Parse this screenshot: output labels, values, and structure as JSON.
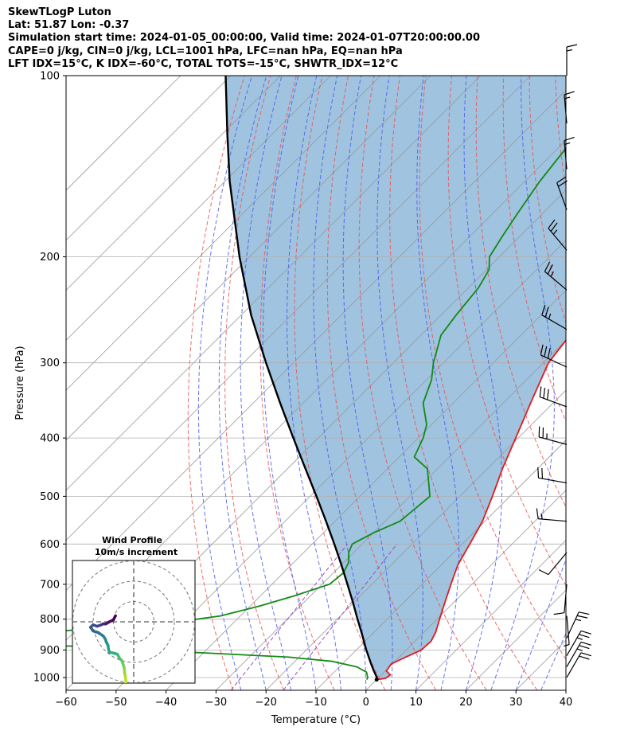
{
  "header": {
    "title": "SkewTLogP Luton",
    "latlon": "Lat: 51.87   Lon: -0.37",
    "times": "Simulation start time: 2024-01-05_00:00:00, Valid time: 2024-01-07T20:00:00.00",
    "params": "CAPE=0 j/kg, CIN=0 j/kg, LCL=1001 hPa, LFC=nan hPa, EQ=nan hPa",
    "indices": "LFT IDX=15°C, K IDX=-60°C, TOTAL TOTS=-15°C, SHWTR_IDX=12°C"
  },
  "colors": {
    "temperature": "#e31a1c",
    "dewpoint": "#138a13",
    "parcel": "#000000",
    "cape_fill": "#8fb9d9",
    "dry_adiabat": "#f05050",
    "moist_adiabat": "#4a5cf0",
    "mixing_ratio": "#9a4fc0",
    "isotherm": "#999999",
    "grid": "#b0b0b0"
  },
  "chart_data": {
    "type": "line",
    "title": "SkewTLogP Luton",
    "xlabel": "Temperature (°C)",
    "ylabel": "Pressure (hPa)",
    "xlim": [
      -60,
      40
    ],
    "ylim": [
      1050,
      100
    ],
    "yscale": "log",
    "x_ticks": [
      -60,
      -50,
      -40,
      -30,
      -20,
      -10,
      0,
      10,
      20,
      30,
      40
    ],
    "x_tick_labels": [
      "−60",
      "−50",
      "−40",
      "−30",
      "−20",
      "−10",
      "0",
      "10",
      "20",
      "30",
      "40"
    ],
    "y_ticks": [
      100,
      200,
      300,
      400,
      500,
      600,
      700,
      800,
      900,
      1000
    ],
    "y_tick_labels": [
      "100",
      "200",
      "300",
      "400",
      "500",
      "600",
      "700",
      "800",
      "900",
      "1000"
    ],
    "series": [
      {
        "name": "Temperature",
        "points": [
          [
            1008,
            0
          ],
          [
            1003,
            1.5
          ],
          [
            990,
            1.8
          ],
          [
            975,
            0.2
          ],
          [
            950,
            -0.2
          ],
          [
            925,
            1.3
          ],
          [
            900,
            3
          ],
          [
            870,
            3.2
          ],
          [
            840,
            2.3
          ],
          [
            800,
            0.5
          ],
          [
            750,
            -1.8
          ],
          [
            700,
            -4.2
          ],
          [
            650,
            -6.7
          ],
          [
            600,
            -8.5
          ],
          [
            550,
            -10.5
          ],
          [
            500,
            -13.5
          ],
          [
            450,
            -17
          ],
          [
            400,
            -20.5
          ],
          [
            350,
            -24.5
          ],
          [
            300,
            -29
          ],
          [
            275,
            -30
          ],
          [
            250,
            -31
          ],
          [
            225,
            -32.5
          ],
          [
            200,
            -34
          ],
          [
            185,
            -35.5
          ],
          [
            170,
            -36.5
          ],
          [
            160,
            -37
          ],
          [
            150,
            -37.5
          ],
          [
            140,
            -38.2
          ],
          [
            130,
            -39.5
          ],
          [
            120,
            -40
          ],
          [
            110,
            -40.7
          ],
          [
            100,
            -41.5
          ]
        ]
      },
      {
        "name": "Dewpoint",
        "points": [
          [
            1008,
            -2
          ],
          [
            1000,
            -2.2
          ],
          [
            980,
            -3.5
          ],
          [
            960,
            -6.5
          ],
          [
            940,
            -12.5
          ],
          [
            925,
            -22
          ],
          [
            910,
            -40
          ],
          [
            905,
            -46
          ],
          [
            890,
            -60
          ],
          [
            880,
            -85
          ],
          [
            870,
            -120
          ],
          [
            850,
            -120
          ],
          [
            840,
            -75
          ],
          [
            810,
            -52
          ],
          [
            790,
            -44
          ],
          [
            760,
            -38
          ],
          [
            730,
            -33
          ],
          [
            700,
            -28.5
          ],
          [
            670,
            -28
          ],
          [
            645,
            -29
          ],
          [
            620,
            -31
          ],
          [
            600,
            -32
          ],
          [
            575,
            -30
          ],
          [
            550,
            -27
          ],
          [
            500,
            -26
          ],
          [
            450,
            -32
          ],
          [
            430,
            -37
          ],
          [
            400,
            -39
          ],
          [
            380,
            -41
          ],
          [
            350,
            -46
          ],
          [
            320,
            -49
          ],
          [
            300,
            -52
          ],
          [
            270,
            -56
          ],
          [
            250,
            -57
          ],
          [
            225,
            -58
          ],
          [
            210,
            -59.5
          ],
          [
            200,
            -62
          ],
          [
            185,
            -63.5
          ],
          [
            170,
            -65
          ],
          [
            150,
            -67
          ],
          [
            125,
            -69
          ],
          [
            110,
            -70
          ],
          [
            100,
            -71
          ]
        ]
      },
      {
        "name": "Parcel",
        "points": [
          [
            1008,
            0
          ],
          [
            1001,
            -0.3
          ],
          [
            975,
            -2.3
          ],
          [
            950,
            -4.2
          ],
          [
            900,
            -8
          ],
          [
            850,
            -11.8
          ],
          [
            800,
            -15.9
          ],
          [
            750,
            -20.2
          ],
          [
            700,
            -24.9
          ],
          [
            650,
            -30
          ],
          [
            600,
            -35.6
          ],
          [
            550,
            -41.8
          ],
          [
            500,
            -48.7
          ],
          [
            450,
            -56.4
          ],
          [
            400,
            -65
          ],
          [
            350,
            -74.6
          ],
          [
            300,
            -85.5
          ],
          [
            250,
            -98
          ],
          [
            200,
            -112
          ],
          [
            150,
            -129
          ],
          [
            125,
            -139
          ],
          [
            100,
            -151
          ]
        ]
      }
    ],
    "wind_barbs": {
      "pressures_hPa": [
        100,
        120,
        143,
        167,
        195,
        227,
        264,
        305,
        355,
        410,
        475,
        550,
        620,
        700,
        790,
        860,
        920,
        960,
        1000
      ],
      "direction_deg": [
        0,
        355,
        355,
        340,
        320,
        310,
        300,
        295,
        290,
        285,
        280,
        275,
        220,
        185,
        175,
        25,
        30,
        30,
        30
      ],
      "speed_kt": [
        15,
        15,
        15,
        20,
        25,
        25,
        25,
        30,
        30,
        25,
        20,
        15,
        10,
        10,
        5,
        25,
        25,
        25,
        20
      ]
    },
    "hodograph": {
      "title": "Wind Profile",
      "subtitle": "10m/s increment",
      "ring_interval_ms": 10,
      "rings": 3,
      "colormap": "viridis",
      "u_ms": [
        -3.5,
        -3.5,
        -3.8,
        -3.9,
        -4.2,
        -4.5,
        -4.7,
        -5.2,
        -5.9,
        -7,
        -8,
        -9.5,
        -12,
        -12.4,
        -12.7,
        -13.5,
        -14,
        -15,
        -16.5,
        -17.5,
        -18.5,
        -20,
        -21.3,
        -20,
        -18,
        -16,
        -15,
        -14,
        -13.3,
        -12,
        -10,
        -9
      ],
      "v_ms": [
        -36,
        -34,
        -31,
        -29,
        -26.5,
        -25,
        -22.5,
        -21,
        -19,
        -18,
        -16,
        -15.5,
        -15,
        -13.5,
        -11.5,
        -10,
        -8.5,
        -7,
        -6,
        -5.3,
        -5,
        -4.5,
        -2.7,
        -1.5,
        -2.2,
        -1.5,
        -1,
        -1.1,
        -0.8,
        0,
        1,
        3
      ]
    }
  }
}
